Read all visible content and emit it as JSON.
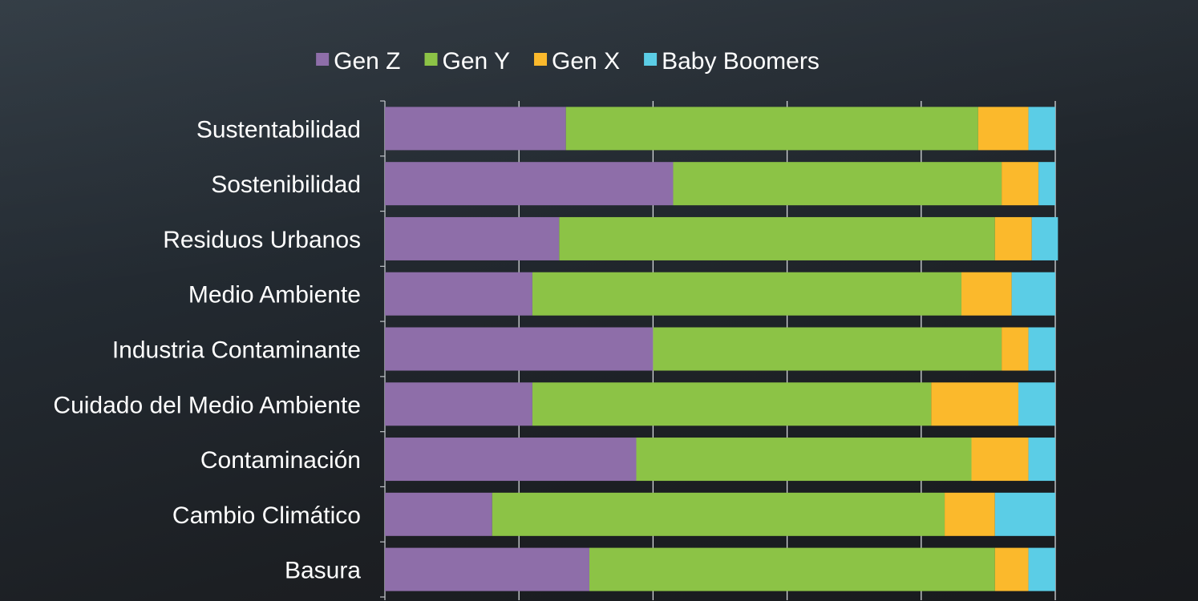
{
  "chart_data": {
    "type": "bar",
    "orientation": "horizontal",
    "stacked": true,
    "normalized": true,
    "xlim": [
      0,
      1
    ],
    "grid": true,
    "legend_position": "top-center",
    "categories": [
      "Sustentabilidad",
      "Sostenibilidad",
      "Residuos Urbanos",
      "Medio Ambiente",
      "Industria Contaminante",
      "Cuidado del Medio Ambiente",
      "Contaminación",
      "Cambio Climático",
      "Basura"
    ],
    "series": [
      {
        "name": "Gen Z",
        "color": "#8e6ea9",
        "values": [
          0.27,
          0.43,
          0.26,
          0.22,
          0.4,
          0.22,
          0.375,
          0.16,
          0.305
        ]
      },
      {
        "name": "Gen Y",
        "color": "#8cc346",
        "values": [
          0.615,
          0.49,
          0.65,
          0.64,
          0.52,
          0.595,
          0.5,
          0.675,
          0.605
        ]
      },
      {
        "name": "Gen X",
        "color": "#fbb92c",
        "values": [
          0.075,
          0.055,
          0.055,
          0.075,
          0.04,
          0.13,
          0.085,
          0.075,
          0.05
        ]
      },
      {
        "name": "Baby Boomers",
        "color": "#5bcde6",
        "values": [
          0.04,
          0.025,
          0.039,
          0.065,
          0.04,
          0.055,
          0.04,
          0.09,
          0.04
        ]
      }
    ]
  }
}
